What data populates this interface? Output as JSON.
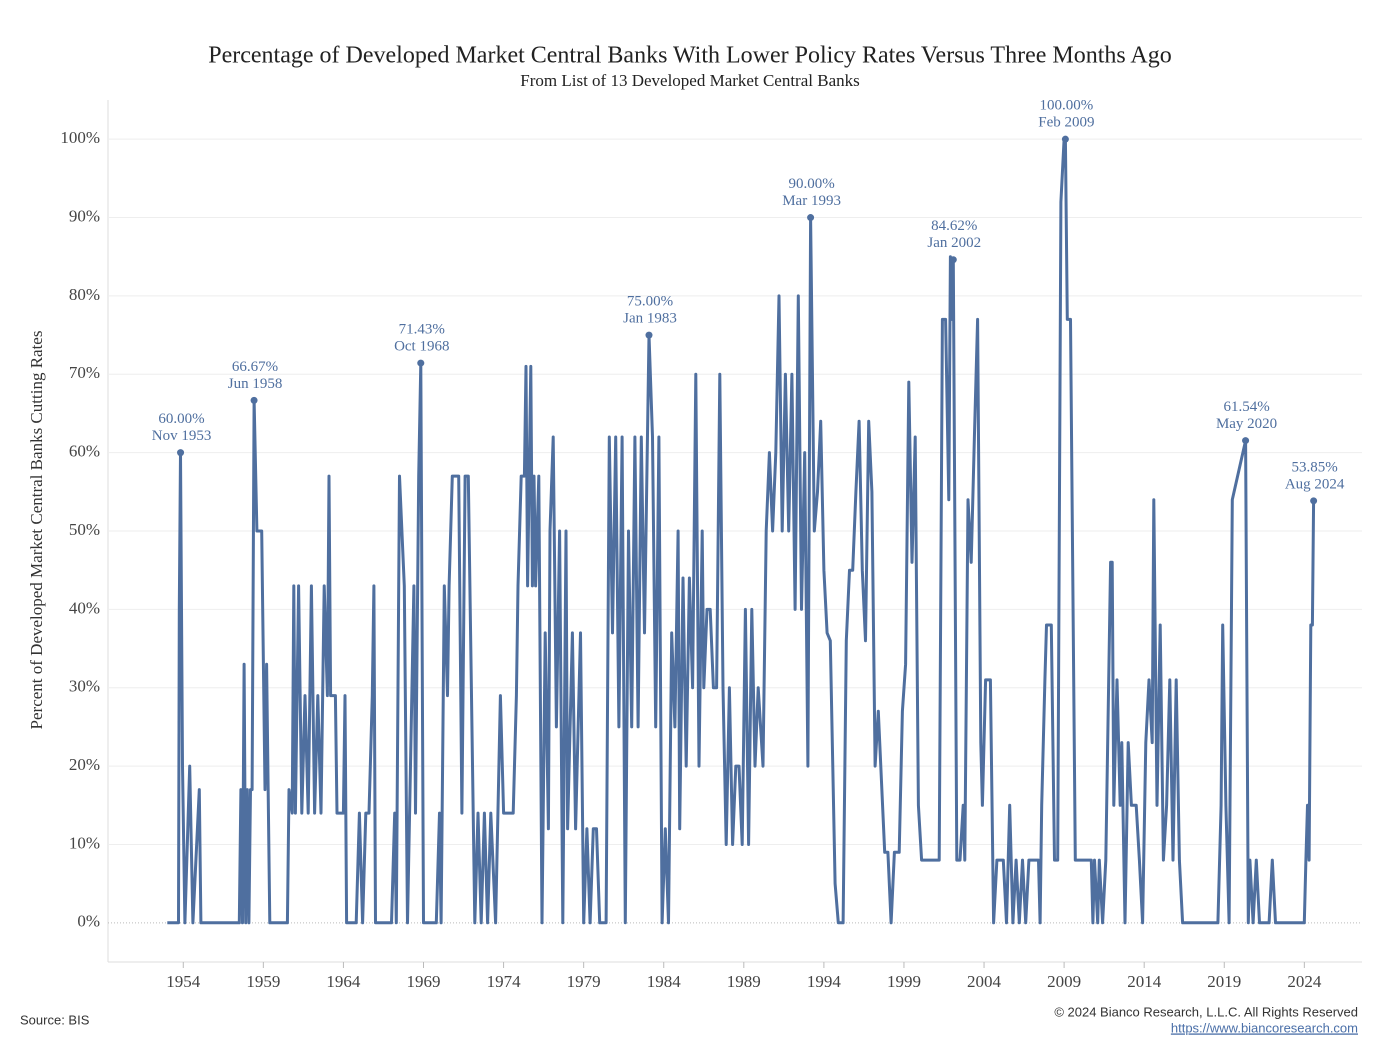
{
  "chart_data": {
    "type": "line",
    "title": "Percentage of Developed Market Central Banks With Lower Policy Rates Versus Three Months Ago",
    "subtitle": "From List of 13 Developed Market Central Banks",
    "y_label": "Percent of Developed Market Central Banks Cutting Rates",
    "source": "Source: BIS",
    "copyright": "© 2024 Bianco Research, L.L.C. All Rights Reserved",
    "url": "https://www.biancoresearch.com",
    "color": "#4f6f9f",
    "grid": true,
    "xlim": [
      1949.3,
      2027.6
    ],
    "ylim": [
      -5,
      105
    ],
    "xticks": [
      1954,
      1959,
      1964,
      1969,
      1974,
      1979,
      1984,
      1989,
      1994,
      1999,
      2004,
      2009,
      2014,
      2019,
      2024
    ],
    "yticks": [
      {
        "value": 0,
        "label": "0%"
      },
      {
        "value": 10,
        "label": "10%"
      },
      {
        "value": 20,
        "label": "20%"
      },
      {
        "value": 30,
        "label": "30%"
      },
      {
        "value": 40,
        "label": "40%"
      },
      {
        "value": 50,
        "label": "50%"
      },
      {
        "value": 60,
        "label": "60%"
      },
      {
        "value": 70,
        "label": "70%"
      },
      {
        "value": 80,
        "label": "80%"
      },
      {
        "value": 90,
        "label": "90%"
      },
      {
        "value": 100,
        "label": "100%"
      }
    ],
    "x": [
      1953.0,
      1953.7,
      1953.75,
      1953.83,
      1953.95,
      1954.1,
      1954.4,
      1954.6,
      1955.0,
      1955.1,
      1957.5,
      1957.6,
      1957.7,
      1957.8,
      1957.9,
      1958.0,
      1958.1,
      1958.2,
      1958.3,
      1958.42,
      1958.6,
      1958.9,
      1959.1,
      1959.2,
      1959.4,
      1960.5,
      1960.6,
      1960.8,
      1960.9,
      1961.0,
      1961.2,
      1961.4,
      1961.6,
      1961.8,
      1962.0,
      1962.2,
      1962.4,
      1962.6,
      1962.8,
      1963.0,
      1963.1,
      1963.2,
      1963.5,
      1963.6,
      1964.0,
      1964.1,
      1964.2,
      1964.8,
      1965.0,
      1965.2,
      1965.4,
      1965.6,
      1965.8,
      1965.9,
      1966.0,
      1967.0,
      1967.2,
      1967.3,
      1967.5,
      1967.8,
      1968.0,
      1968.4,
      1968.5,
      1968.7,
      1968.83,
      1969.0,
      1969.8,
      1970.0,
      1970.1,
      1970.3,
      1970.5,
      1970.6,
      1970.8,
      1971.2,
      1971.4,
      1971.6,
      1971.8,
      1972.2,
      1972.4,
      1972.6,
      1972.8,
      1973.0,
      1973.2,
      1973.5,
      1973.8,
      1974.0,
      1974.6,
      1974.8,
      1974.9,
      1975.1,
      1975.3,
      1975.4,
      1975.5,
      1975.7,
      1975.8,
      1975.9,
      1976.0,
      1976.2,
      1976.4,
      1976.6,
      1976.8,
      1976.9,
      1977.1,
      1977.3,
      1977.5,
      1977.7,
      1977.9,
      1978.0,
      1978.3,
      1978.5,
      1978.8,
      1979.0,
      1979.2,
      1979.4,
      1979.6,
      1979.8,
      1980.0,
      1980.4,
      1980.6,
      1980.8,
      1981.0,
      1981.2,
      1981.4,
      1981.6,
      1981.8,
      1982.0,
      1982.2,
      1982.4,
      1982.6,
      1982.8,
      1983.08,
      1983.3,
      1983.5,
      1983.7,
      1983.9,
      1984.1,
      1984.3,
      1984.5,
      1984.7,
      1984.9,
      1985.0,
      1985.2,
      1985.4,
      1985.6,
      1985.8,
      1986.0,
      1986.2,
      1986.4,
      1986.5,
      1986.7,
      1986.9,
      1987.1,
      1987.3,
      1987.5,
      1987.7,
      1987.9,
      1988.1,
      1988.3,
      1988.5,
      1988.7,
      1988.9,
      1989.1,
      1989.3,
      1989.5,
      1989.7,
      1989.9,
      1990.2,
      1990.4,
      1990.6,
      1990.8,
      1991.0,
      1991.2,
      1991.4,
      1991.6,
      1991.8,
      1992.0,
      1992.2,
      1992.4,
      1992.6,
      1992.8,
      1993.0,
      1993.17,
      1993.4,
      1993.6,
      1993.8,
      1994.0,
      1994.2,
      1994.4,
      1994.7,
      1994.9,
      1995.2,
      1995.4,
      1995.6,
      1995.8,
      1996.0,
      1996.2,
      1996.4,
      1996.6,
      1996.8,
      1997.0,
      1997.2,
      1997.4,
      1997.6,
      1997.8,
      1998.0,
      1998.2,
      1998.4,
      1998.7,
      1998.9,
      1999.1,
      1999.3,
      1999.5,
      1999.7,
      1999.9,
      2000.1,
      2001.2,
      2001.4,
      2001.6,
      2001.8,
      2001.9,
      2002.0,
      2002.08,
      2002.3,
      2002.5,
      2002.7,
      2002.8,
      2003.0,
      2003.2,
      2003.4,
      2003.6,
      2003.8,
      2003.9,
      2004.1,
      2004.4,
      2004.6,
      2004.8,
      2005.2,
      2005.4,
      2005.6,
      2005.8,
      2006.0,
      2006.2,
      2006.4,
      2006.6,
      2006.8,
      2007.4,
      2007.5,
      2007.6,
      2007.8,
      2007.9,
      2008.2,
      2008.4,
      2008.6,
      2008.8,
      2009.0,
      2009.08,
      2009.2,
      2009.4,
      2009.7,
      2010.7,
      2010.8,
      2010.9,
      2011.1,
      2011.2,
      2011.4,
      2011.6,
      2011.9,
      2012.0,
      2012.1,
      2012.3,
      2012.5,
      2012.6,
      2012.8,
      2013.0,
      2013.2,
      2013.5,
      2013.7,
      2013.9,
      2014.1,
      2014.3,
      2014.5,
      2014.6,
      2014.8,
      2015.0,
      2015.2,
      2015.4,
      2015.6,
      2015.8,
      2016.0,
      2016.2,
      2016.4,
      2018.6,
      2018.8,
      2018.9,
      2019.1,
      2019.3,
      2019.5,
      2020.33,
      2020.5,
      2020.6,
      2020.8,
      2021.0,
      2021.2,
      2021.8,
      2022.0,
      2022.2,
      2024.0,
      2024.1,
      2024.2,
      2024.3,
      2024.4,
      2024.5,
      2024.58
    ],
    "values": [
      0,
      0,
      40,
      60,
      20,
      0,
      20,
      0,
      17,
      0,
      0,
      17,
      0,
      33,
      0,
      17,
      0,
      17,
      17,
      66.67,
      50,
      50,
      17,
      33,
      0,
      0,
      17,
      14,
      43,
      14,
      43,
      14,
      29,
      14,
      43,
      14,
      29,
      14,
      43,
      29,
      57,
      29,
      29,
      14,
      14,
      29,
      0,
      0,
      14,
      0,
      14,
      14,
      29,
      43,
      0,
      0,
      14,
      0,
      57,
      43,
      0,
      43,
      14,
      57,
      71.43,
      0,
      0,
      14,
      0,
      43,
      29,
      43,
      57,
      57,
      14,
      57,
      57,
      0,
      14,
      0,
      14,
      0,
      14,
      0,
      29,
      14,
      14,
      29,
      43,
      57,
      57,
      71,
      43,
      71,
      43,
      57,
      43,
      57,
      0,
      37,
      12,
      50,
      62,
      25,
      50,
      0,
      50,
      12,
      37,
      12,
      37,
      0,
      12,
      0,
      12,
      12,
      0,
      0,
      62,
      37,
      62,
      25,
      62,
      0,
      50,
      25,
      62,
      25,
      62,
      37,
      75,
      62,
      25,
      62,
      0,
      12,
      0,
      37,
      25,
      50,
      12,
      44,
      20,
      44,
      30,
      70,
      20,
      50,
      30,
      40,
      40,
      30,
      30,
      70,
      30,
      10,
      30,
      10,
      20,
      20,
      10,
      40,
      10,
      40,
      20,
      30,
      20,
      50,
      60,
      50,
      60,
      80,
      50,
      70,
      50,
      70,
      40,
      80,
      40,
      60,
      20,
      90,
      50,
      55,
      64,
      45,
      37,
      36,
      5,
      0,
      0,
      36,
      45,
      45,
      55,
      64,
      45,
      36,
      64,
      55,
      20,
      27,
      18,
      9,
      9,
      0,
      9,
      9,
      27,
      33,
      69,
      46,
      62,
      15,
      8,
      8,
      77,
      77,
      54,
      85,
      77,
      84.62,
      8,
      8,
      15,
      8,
      54,
      46,
      62,
      77,
      23,
      15,
      31,
      31,
      0,
      8,
      8,
      0,
      15,
      0,
      8,
      0,
      8,
      0,
      8,
      8,
      0,
      15,
      31,
      38,
      38,
      8,
      8,
      92,
      100,
      100,
      77,
      77,
      8,
      8,
      0,
      8,
      0,
      8,
      0,
      8,
      46,
      46,
      15,
      31,
      15,
      23,
      0,
      23,
      15,
      15,
      8,
      0,
      23,
      31,
      23,
      54,
      15,
      38,
      8,
      15,
      31,
      8,
      31,
      8,
      0,
      0,
      15,
      38,
      15,
      0,
      54,
      61.54,
      0,
      8,
      0,
      8,
      0,
      0,
      8,
      0,
      0,
      8,
      15,
      8,
      38,
      38,
      53.85
    ],
    "annotations": [
      {
        "x": 1953.83,
        "y": 60,
        "value_label": "60.00%",
        "date": "Nov 1953"
      },
      {
        "x": 1958.42,
        "y": 66.67,
        "value_label": "66.67%",
        "date": "Jun 1958"
      },
      {
        "x": 1968.83,
        "y": 71.43,
        "value_label": "71.43%",
        "date": "Oct 1968"
      },
      {
        "x": 1983.08,
        "y": 75,
        "value_label": "75.00%",
        "date": "Jan 1983"
      },
      {
        "x": 1993.17,
        "y": 90,
        "value_label": "90.00%",
        "date": "Mar 1993"
      },
      {
        "x": 2002.08,
        "y": 84.62,
        "value_label": "84.62%",
        "date": "Jan 2002"
      },
      {
        "x": 2009.08,
        "y": 100,
        "value_label": "100.00%",
        "date": "Feb 2009"
      },
      {
        "x": 2020.33,
        "y": 61.54,
        "value_label": "61.54%",
        "date": "May 2020"
      },
      {
        "x": 2024.58,
        "y": 53.85,
        "value_label": "53.85%",
        "date": "Aug 2024"
      }
    ]
  }
}
